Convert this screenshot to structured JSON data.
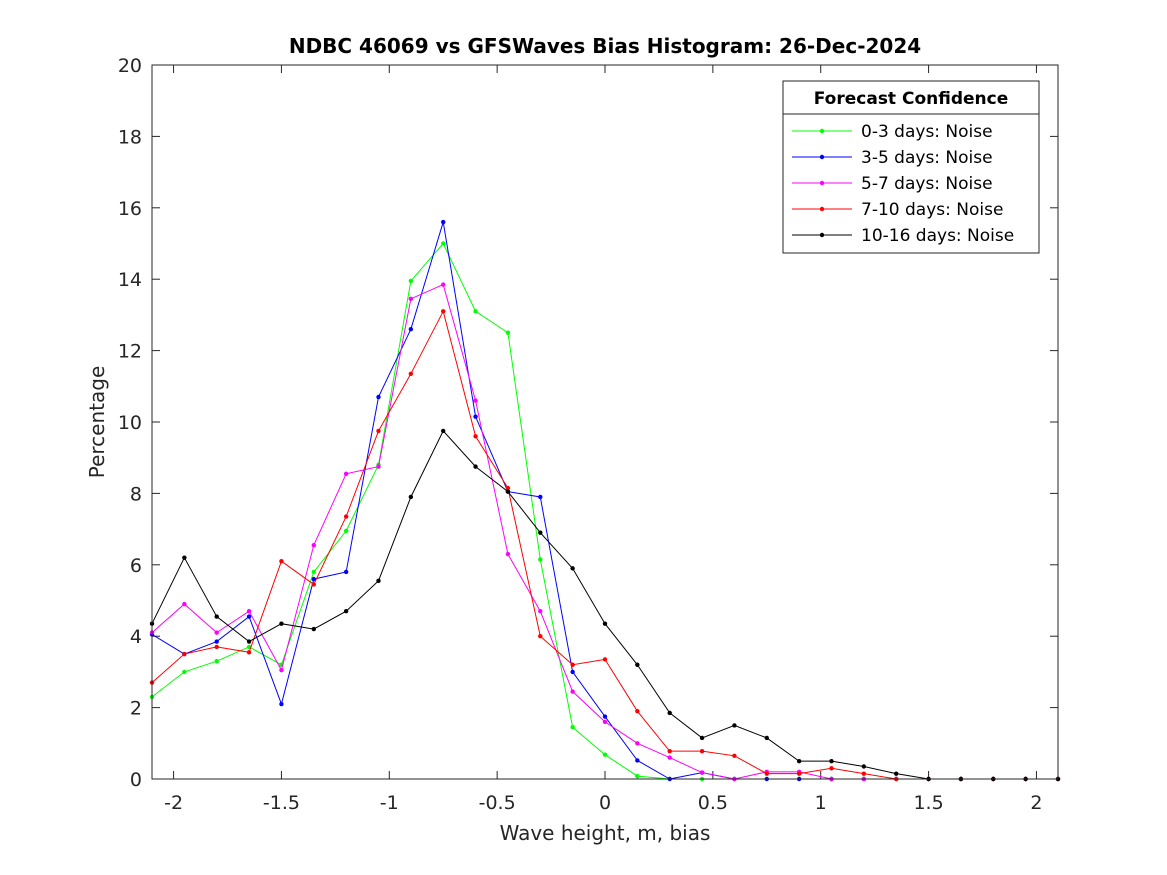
{
  "chart_data": {
    "type": "line",
    "title": "NDBC 46069 vs GFSWaves Bias Histogram: 26-Dec-2024",
    "xlabel": "Wave height, m, bias",
    "ylabel": "Percentage",
    "xlim": [
      -2.1,
      2.1
    ],
    "ylim": [
      0,
      20
    ],
    "xticks": [
      -2,
      -1.5,
      -1,
      -0.5,
      0,
      0.5,
      1,
      1.5,
      2
    ],
    "xtick_labels": [
      "-2",
      "-1.5",
      "-1",
      "-0.5",
      "0",
      "0.5",
      "1",
      "1.5",
      "2"
    ],
    "yticks": [
      0,
      2,
      4,
      6,
      8,
      10,
      12,
      14,
      16,
      18,
      20
    ],
    "ytick_labels": [
      "0",
      "2",
      "4",
      "6",
      "8",
      "10",
      "12",
      "14",
      "16",
      "18",
      "20"
    ],
    "grid": false,
    "legend": {
      "title": "Forecast Confidence",
      "location": "top-right"
    },
    "x": [
      -2.1,
      -1.95,
      -1.8,
      -1.65,
      -1.5,
      -1.35,
      -1.2,
      -1.05,
      -0.9,
      -0.75,
      -0.6,
      -0.45,
      -0.3,
      -0.15,
      0,
      0.15,
      0.3,
      0.45,
      0.6,
      0.75,
      0.9,
      1.05,
      1.2,
      1.35,
      1.5,
      1.65,
      1.8,
      1.95,
      2.1
    ],
    "series": [
      {
        "name": "0-3 days: Noise",
        "color": "#00ff00",
        "values": [
          2.3,
          3.0,
          3.3,
          3.7,
          3.2,
          5.8,
          6.95,
          8.8,
          13.95,
          15.0,
          13.1,
          12.5,
          6.15,
          1.45,
          0.68,
          0.08,
          0.0,
          0.0,
          0.0,
          0.0,
          0.0,
          0.0,
          0.0,
          0.0,
          0.0,
          0.0,
          0.0,
          0.0,
          0.0
        ]
      },
      {
        "name": "3-5 days: Noise",
        "color": "#0000ff",
        "values": [
          4.05,
          3.5,
          3.85,
          4.55,
          2.1,
          5.6,
          5.8,
          10.7,
          12.6,
          15.6,
          10.15,
          8.05,
          7.9,
          3.0,
          1.75,
          0.52,
          0.0,
          0.18,
          0.0,
          0.0,
          0.0,
          0.0,
          0.0,
          0.0,
          0.0,
          0.0,
          0.0,
          0.0,
          0.0
        ]
      },
      {
        "name": "5-7 days: Noise",
        "color": "#ff00ff",
        "values": [
          4.1,
          4.9,
          4.1,
          4.7,
          3.05,
          6.55,
          8.55,
          8.75,
          13.45,
          13.85,
          10.6,
          6.3,
          4.7,
          2.45,
          1.6,
          1.0,
          0.6,
          0.18,
          0.0,
          0.2,
          0.2,
          0.0,
          0.0,
          0.0,
          0.0,
          0.0,
          0.0,
          0.0,
          0.0
        ]
      },
      {
        "name": "7-10 days: Noise",
        "color": "#ff0000",
        "values": [
          2.7,
          3.5,
          3.7,
          3.55,
          6.1,
          5.45,
          7.35,
          9.75,
          11.35,
          13.1,
          9.6,
          8.15,
          4.0,
          3.2,
          3.35,
          1.9,
          0.78,
          0.78,
          0.65,
          0.15,
          0.15,
          0.3,
          0.15,
          0.0,
          0.0,
          0.0,
          0.0,
          0.0,
          0.0
        ]
      },
      {
        "name": "10-16 days: Noise",
        "color": "#000000",
        "values": [
          4.35,
          6.2,
          4.55,
          3.85,
          4.35,
          4.2,
          4.7,
          5.55,
          7.9,
          9.75,
          8.75,
          8.05,
          6.9,
          5.9,
          4.35,
          3.2,
          1.85,
          1.15,
          1.5,
          1.15,
          0.5,
          0.5,
          0.35,
          0.15,
          0.0,
          0.0,
          0.0,
          0.0,
          0.0
        ]
      }
    ]
  }
}
